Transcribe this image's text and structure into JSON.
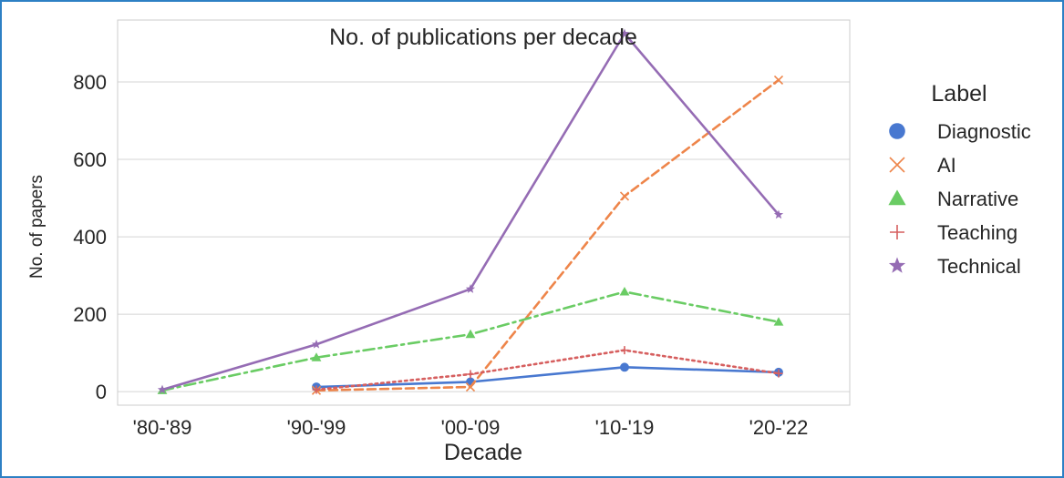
{
  "chart_data": {
    "type": "line",
    "title": "No. of publications per decade",
    "xlabel": "Decade",
    "ylabel": "No. of papers",
    "categories": [
      "'80-'89",
      "'90-'99",
      "'00-'09",
      "'10-'19",
      "'20-'22"
    ],
    "ylim": [
      -35,
      960
    ],
    "yticks": [
      0,
      200,
      400,
      600,
      800
    ],
    "grid": true,
    "legend_title": "Label",
    "legend_position": "right",
    "series": [
      {
        "name": "Diagnostic",
        "color": "#4878d0",
        "marker": "circle",
        "dash": "solid",
        "values": [
          null,
          12,
          25,
          63,
          50
        ]
      },
      {
        "name": "AI",
        "color": "#ee854a",
        "marker": "x",
        "dash": "dashed",
        "values": [
          null,
          3,
          12,
          505,
          805
        ]
      },
      {
        "name": "Narrative",
        "color": "#6acc64",
        "marker": "triangle",
        "dash": "dashdot",
        "values": [
          3,
          88,
          148,
          258,
          180
        ]
      },
      {
        "name": "Teaching",
        "color": "#d65f5f",
        "marker": "plus",
        "dash": "dotted",
        "values": [
          null,
          5,
          45,
          107,
          47
        ]
      },
      {
        "name": "Technical",
        "color": "#956cb4",
        "marker": "star",
        "dash": "solid",
        "values": [
          5,
          122,
          265,
          925,
          457
        ]
      }
    ]
  }
}
